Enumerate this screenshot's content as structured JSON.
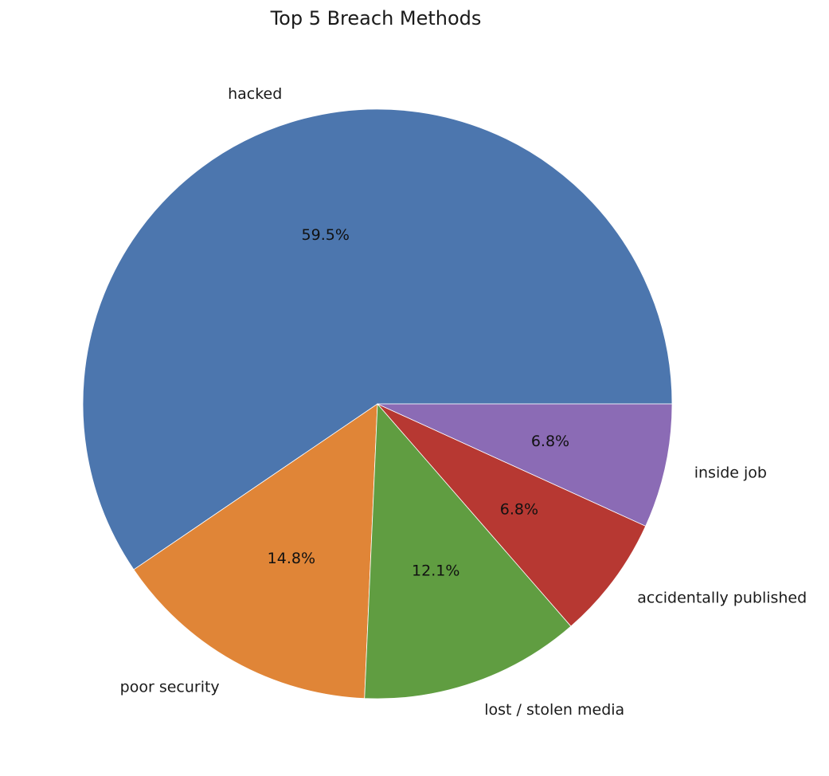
{
  "chart_data": {
    "type": "pie",
    "title": "Top 5 Breach Methods",
    "start_angle_deg": 0,
    "direction": "counterclockwise",
    "slices": [
      {
        "label": "hacked",
        "value": 59.5,
        "pct_label": "59.5%",
        "color": "#4c76ae"
      },
      {
        "label": "poor security",
        "value": 14.8,
        "pct_label": "14.8%",
        "color": "#e08537"
      },
      {
        "label": "lost / stolen media",
        "value": 12.1,
        "pct_label": "12.1%",
        "color": "#609d41"
      },
      {
        "label": "accidentally published",
        "value": 6.8,
        "pct_label": "6.8%",
        "color": "#b73832"
      },
      {
        "label": "inside job",
        "value": 6.8,
        "pct_label": "6.8%",
        "color": "#8b6bb5"
      }
    ]
  }
}
